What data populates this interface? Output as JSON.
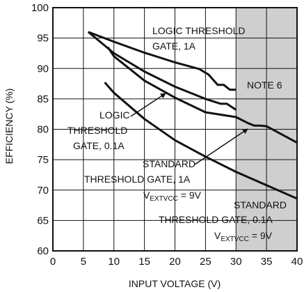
{
  "chart_data": {
    "type": "line",
    "xlabel": "INPUT VOLTAGE (V)",
    "ylabel": "EFFICIENCY (%)",
    "xlim": [
      0,
      40
    ],
    "ylim": [
      60,
      100
    ],
    "x_ticks": [
      0,
      5,
      10,
      15,
      20,
      25,
      30,
      35,
      40
    ],
    "y_ticks": [
      60,
      65,
      70,
      75,
      80,
      85,
      90,
      95,
      100
    ],
    "grid": true,
    "shaded_region": {
      "x_from": 30,
      "x_to": 40,
      "color": "#cfcfcf",
      "label": "NOTE 6"
    },
    "series": [
      {
        "name": "LOGIC THRESHOLD GATE, 1A",
        "x": [
          5.8,
          10,
          15,
          20,
          24,
          25.5,
          27,
          28,
          29,
          30
        ],
        "y": [
          96.0,
          94.4,
          92.6,
          91.0,
          89.9,
          89.0,
          87.3,
          87.3,
          86.5,
          86.5
        ]
      },
      {
        "name": "LOGIC THRESHOLD GATE, 0.1A",
        "x": [
          5.8,
          10,
          15,
          20,
          25,
          27.5,
          28.5,
          30
        ],
        "y": [
          96.0,
          92.5,
          89.5,
          87.0,
          85.0,
          84.2,
          84.2,
          83.2
        ]
      },
      {
        "name": "STANDARD THRESHOLD GATE, 1A V_EXTVCC = 9V",
        "x": [
          9,
          10,
          15,
          20,
          25,
          30,
          32,
          33,
          34,
          35,
          40
        ],
        "y": [
          93.5,
          92.0,
          88.0,
          85.2,
          82.8,
          82.0,
          81.0,
          80.6,
          80.6,
          80.5,
          77.8
        ]
      },
      {
        "name": "STANDARD THRESHOLD GATE, 0.1A V_EXTVCC = 9V",
        "x": [
          8.5,
          10,
          15,
          20,
          25,
          30,
          35,
          40
        ],
        "y": [
          87.7,
          86.0,
          81.7,
          78.2,
          75.5,
          73.0,
          70.8,
          68.6
        ]
      }
    ]
  },
  "annotations": {
    "note": "NOTE 6",
    "logic_1a_line1": "LOGIC THRESHOLD",
    "logic_1a_line2": "GATE, 1A",
    "logic_01a_line1": "LOGIC",
    "logic_01a_line2": "THRESHOLD",
    "logic_01a_line3": "GATE, 0.1A",
    "std_1a_line1": "STANDARD",
    "std_1a_line2": "THRESHOLD GATE, 1A",
    "std_1a_v": "V",
    "std_1a_sub": "EXTVCC",
    "std_1a_eq": " = 9V",
    "std_01a_line1": "STANDARD",
    "std_01a_line2": "THRESHOLD GATE, 0.1A",
    "std_01a_v": "V",
    "std_01a_sub": "EXTVCC",
    "std_01a_eq": " = 9V"
  }
}
